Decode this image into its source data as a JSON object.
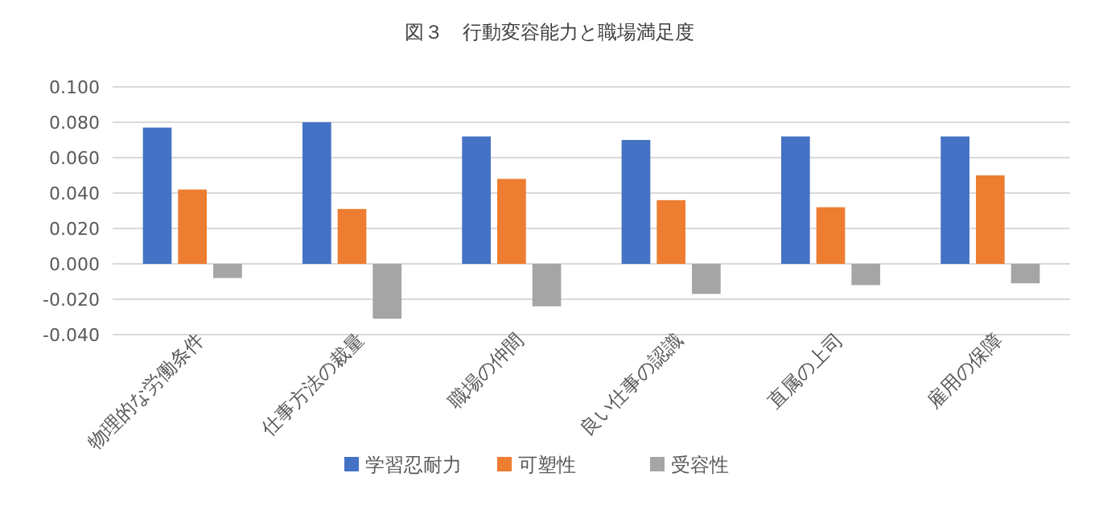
{
  "chart_data": {
    "type": "bar",
    "title": "図３　行動変容能力と職場満足度",
    "categories": [
      "物理的な労働条件",
      "仕事方法の裁量",
      "職場の仲間",
      "良い仕事の認識",
      "直属の上司",
      "雇用の保障"
    ],
    "series": [
      {
        "name": "学習忍耐力",
        "color": "#4472c4",
        "values": [
          0.077,
          0.08,
          0.072,
          0.07,
          0.072,
          0.072
        ]
      },
      {
        "name": "可塑性",
        "color": "#ed7d31",
        "values": [
          0.042,
          0.031,
          0.048,
          0.036,
          0.032,
          0.05
        ]
      },
      {
        "name": "受容性",
        "color": "#a5a5a5",
        "values": [
          -0.008,
          -0.031,
          -0.024,
          -0.017,
          -0.012,
          -0.011
        ]
      }
    ],
    "ylim": [
      -0.04,
      0.1
    ],
    "yticks": [
      {
        "value": -0.04,
        "label": "-0.040"
      },
      {
        "value": -0.02,
        "label": "-0.020"
      },
      {
        "value": 0,
        "label": "0.000"
      },
      {
        "value": 0.02,
        "label": "0.020"
      },
      {
        "value": 0.04,
        "label": "0.040"
      },
      {
        "value": 0.06,
        "label": "0.060"
      },
      {
        "value": 0.08,
        "label": "0.080"
      },
      {
        "value": 0.1,
        "label": "0.100"
      }
    ],
    "grid": "y",
    "legend": "bottom"
  }
}
